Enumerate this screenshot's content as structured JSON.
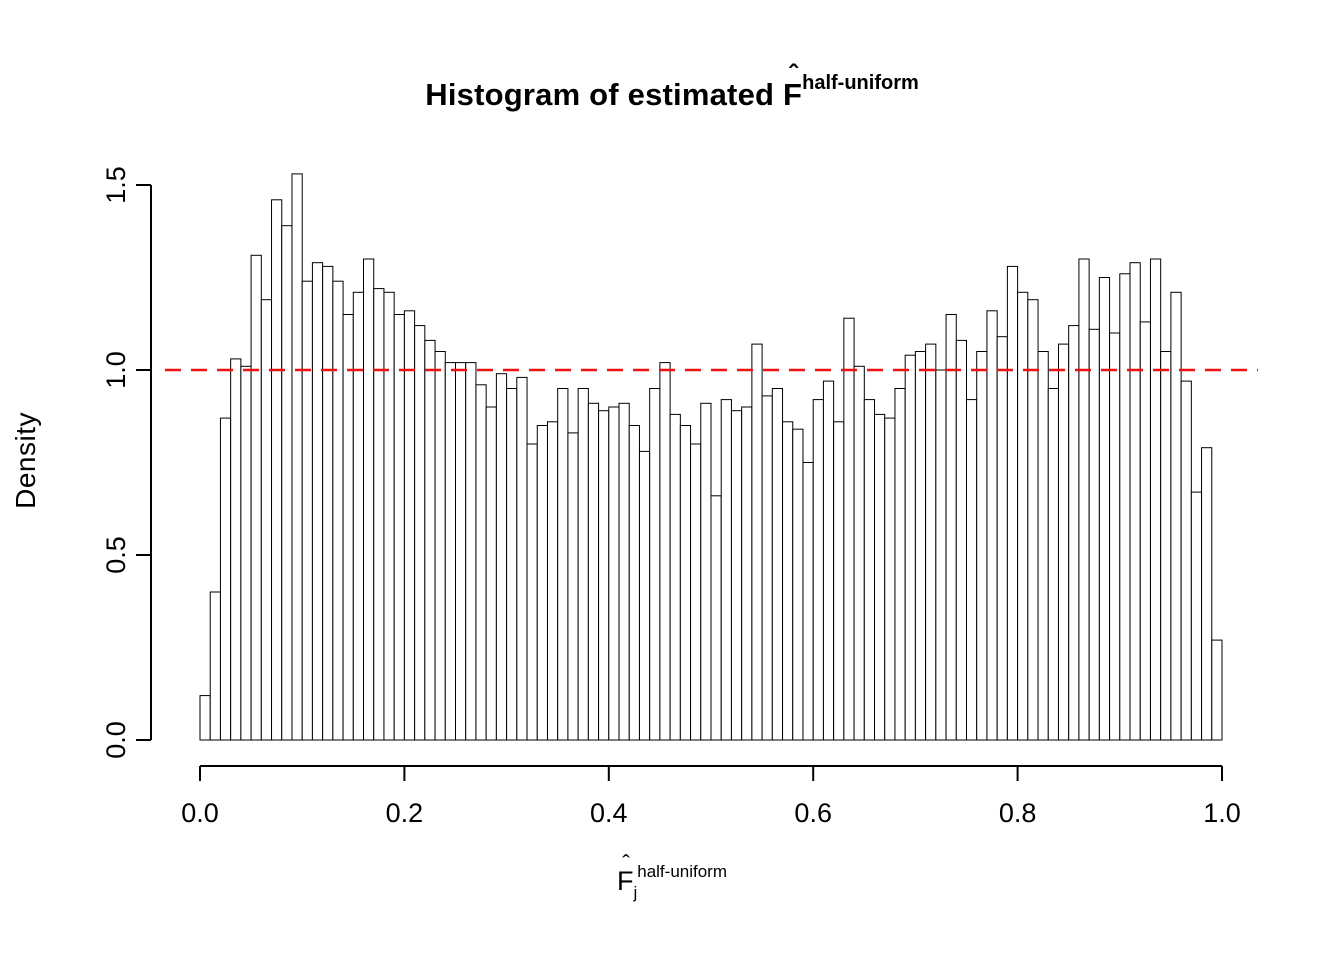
{
  "title": {
    "prefix": "Histogram of estimated ",
    "f_symbol": "F",
    "hat_symbol": "ˆ",
    "superscript": "half-uniform"
  },
  "xlabel": {
    "f_symbol": "F",
    "hat_symbol": "ˆ",
    "subscript": "j",
    "superscript": "half-uniform"
  },
  "ylabel": "Density",
  "chart_data": {
    "type": "bar",
    "subtype": "histogram",
    "title": "Histogram of estimated F-hat^half-uniform",
    "xlabel": "F-hat_j^half-uniform",
    "ylabel": "Density",
    "xlim": [
      0,
      1
    ],
    "ylim": [
      0,
      1.5
    ],
    "x_ticks": [
      0.0,
      0.2,
      0.4,
      0.6,
      0.8,
      1.0
    ],
    "y_ticks": [
      0.0,
      0.5,
      1.0,
      1.5
    ],
    "bin_start": 0,
    "bin_width": 0.01,
    "bar_fill": "#ffffff",
    "bar_stroke": "#000000",
    "axis_color": "#000000",
    "reference_line": {
      "y": 1.0,
      "color": "#ee1111",
      "style": "dashed"
    },
    "values": [
      0.12,
      0.4,
      0.87,
      1.03,
      1.01,
      1.31,
      1.19,
      1.46,
      1.39,
      1.53,
      1.24,
      1.29,
      1.28,
      1.24,
      1.15,
      1.21,
      1.3,
      1.22,
      1.21,
      1.15,
      1.16,
      1.12,
      1.08,
      1.05,
      1.02,
      1.02,
      1.02,
      0.96,
      0.9,
      0.99,
      0.95,
      0.98,
      0.8,
      0.85,
      0.86,
      0.95,
      0.83,
      0.95,
      0.91,
      0.89,
      0.9,
      0.91,
      0.85,
      0.78,
      0.95,
      1.02,
      0.88,
      0.85,
      0.8,
      0.91,
      0.66,
      0.92,
      0.89,
      0.9,
      1.07,
      0.93,
      0.95,
      0.86,
      0.84,
      0.75,
      0.92,
      0.97,
      0.86,
      1.14,
      1.01,
      0.92,
      0.88,
      0.87,
      0.95,
      1.04,
      1.05,
      1.07,
      1.0,
      1.15,
      1.08,
      0.92,
      1.05,
      1.16,
      1.09,
      1.28,
      1.21,
      1.19,
      1.05,
      0.95,
      1.07,
      1.12,
      1.3,
      1.11,
      1.25,
      1.1,
      1.26,
      1.29,
      1.13,
      1.3,
      1.05,
      1.21,
      0.97,
      0.67,
      0.79,
      0.27
    ]
  }
}
